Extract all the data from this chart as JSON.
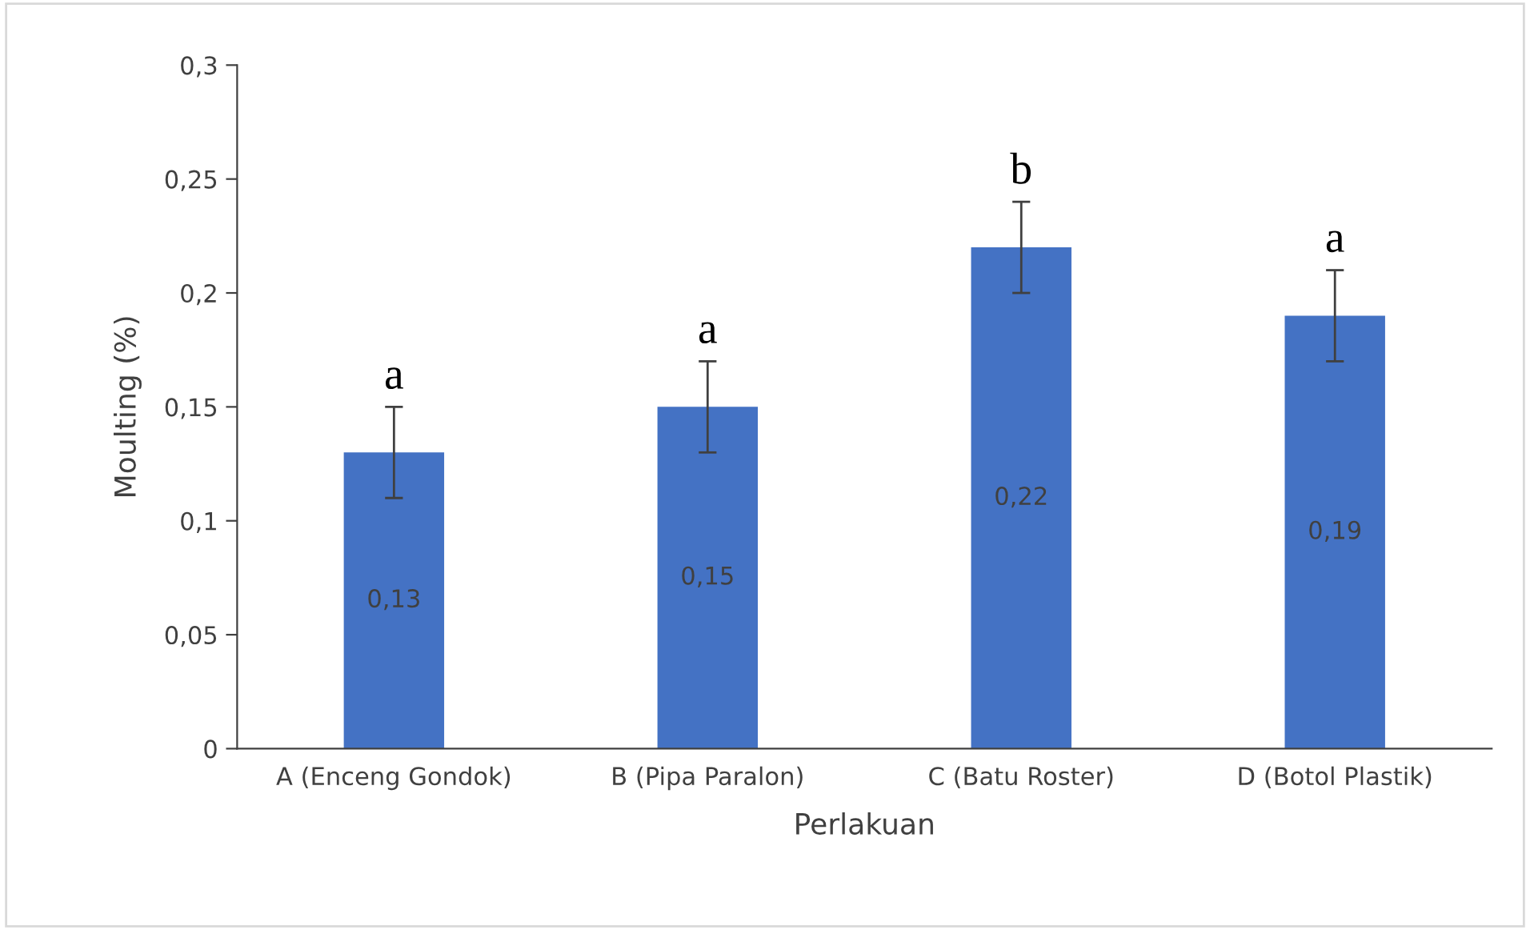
{
  "chart_data": {
    "type": "bar",
    "xlabel": "Perlakuan",
    "ylabel": "Moulting (%)",
    "categories": [
      "A (Enceng Gondok)",
      "B (Pipa Paralon)",
      "C (Batu Roster)",
      "D (Botol Plastik)"
    ],
    "values": [
      0.13,
      0.15,
      0.22,
      0.19
    ],
    "errors": [
      0.02,
      0.02,
      0.02,
      0.02
    ],
    "value_labels": [
      "0,13",
      "0,15",
      "0,22",
      "0,19"
    ],
    "color": "#4472c4",
    "ylim": [
      0,
      0.3
    ],
    "yticks": [
      0,
      {
        "value": 0.05,
        "label": "0,05"
      },
      {
        "value": 0.1,
        "label": "0,1"
      },
      {
        "value": 0.15,
        "label": "0,15"
      },
      {
        "value": 0.2,
        "label": "0,2"
      },
      {
        "value": 0.25,
        "label": "0,25"
      },
      {
        "value": 0.3,
        "label": "0,3"
      }
    ],
    "grid": false,
    "annotations": [
      {
        "text": "a",
        "x": "A (Enceng Gondok)",
        "y": 0.15
      },
      {
        "text": "a",
        "x": "B (Pipa Paralon)",
        "y": 0.17
      },
      {
        "text": "b",
        "x": "C (Batu Roster)",
        "y": 0.24
      },
      {
        "text": "a",
        "x": "D (Botol Plastik)",
        "y": 0.21
      }
    ]
  }
}
